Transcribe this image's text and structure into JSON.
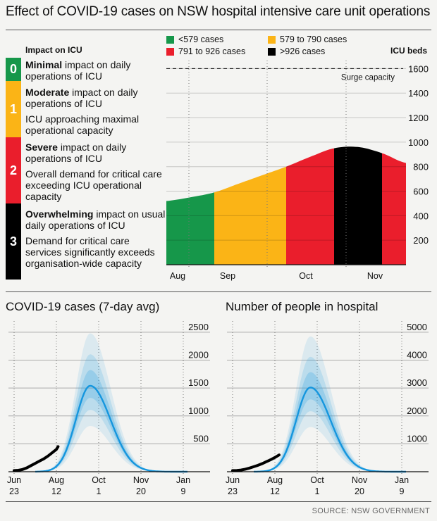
{
  "title": "Effect of COVID-19 cases on NSW hospital intensive care unit operations",
  "impact": {
    "heading": "Impact on ICU",
    "levels": [
      {
        "num": "0",
        "color": "#16974a",
        "bold": "Minimal",
        "rest": " impact on daily operations of ICU",
        "note": ""
      },
      {
        "num": "1",
        "color": "#fbb416",
        "bold": "Moderate",
        "rest": " impact on daily operations of ICU",
        "note": "ICU approaching maximal operational capacity"
      },
      {
        "num": "2",
        "color": "#ea1e2c",
        "bold": "Severe",
        "rest": " impact on daily operations of ICU",
        "note": "Overall demand for critical care exceeding ICU operational capacity"
      },
      {
        "num": "3",
        "color": "#000000",
        "bold": "Overwhelming",
        "rest": " impact on usual daily operations of ICU",
        "note": "Demand for critical care services significantly exceeds organisation-wide capacity"
      }
    ]
  },
  "legend": [
    {
      "label": "<579 cases",
      "color": "#16974a"
    },
    {
      "label": "579 to 790 cases",
      "color": "#fbb416"
    },
    {
      "label": "791 to 926 cases",
      "color": "#ea1e2c"
    },
    {
      "label": ">926 cases",
      "color": "#000000"
    }
  ],
  "icu_axis_label": "ICU beds",
  "surge_label": "Surge capacity",
  "sub_titles": {
    "cases": "COVID-19 cases (7-day avg)",
    "hospital": "Number of people in hospital"
  },
  "source": "SOURCE: NSW GOVERNMENT",
  "chart_data": [
    {
      "type": "area",
      "id": "icu",
      "ylabel": "ICU beds",
      "ylim": [
        0,
        1700
      ],
      "yticks": [
        200,
        400,
        600,
        800,
        1000,
        1200,
        1400,
        1600
      ],
      "xticks": [
        "Aug",
        "Sep",
        "Oct",
        "Nov"
      ],
      "surge_capacity": 1600,
      "x_months": [
        0,
        1,
        2,
        3,
        4,
        5,
        6,
        7,
        8,
        9,
        10
      ],
      "values": [
        520,
        550,
        590,
        660,
        730,
        800,
        880,
        950,
        960,
        910,
        830
      ],
      "bands": [
        {
          "from": 0,
          "to": 2,
          "color": "#16974a"
        },
        {
          "from": 2,
          "to": 5,
          "color": "#fbb416"
        },
        {
          "from": 5,
          "to": 7,
          "color": "#ea1e2c"
        },
        {
          "from": 7,
          "to": 9,
          "color": "#000000"
        },
        {
          "from": 9,
          "to": 10,
          "color": "#ea1e2c"
        }
      ]
    },
    {
      "type": "line",
      "id": "cases",
      "title": "COVID-19 cases (7-day avg)",
      "ylim": [
        0,
        2600
      ],
      "yticks": [
        500,
        1000,
        1500,
        2000,
        2500
      ],
      "xticks": [
        {
          "top": "Jun",
          "bottom": "23",
          "day": 0
        },
        {
          "top": "Aug",
          "bottom": "12",
          "day": 50
        },
        {
          "top": "Oct",
          "bottom": "1",
          "day": 100
        },
        {
          "top": "Nov",
          "bottom": "20",
          "day": 150
        },
        {
          "top": "Jan",
          "bottom": "9",
          "day": 200
        }
      ],
      "peak_day": 90,
      "projection_peak": 1540,
      "band_upper_peak": 2480,
      "band_lower_peak": 820,
      "actual": {
        "days": [
          0,
          5,
          10,
          15,
          20,
          25,
          30,
          35,
          40,
          45,
          50,
          52
        ],
        "values": [
          20,
          25,
          40,
          70,
          110,
          150,
          190,
          230,
          280,
          340,
          400,
          450
        ]
      }
    },
    {
      "type": "line",
      "id": "hospital",
      "title": "Number of people in hospital",
      "ylim": [
        0,
        5200
      ],
      "yticks": [
        1000,
        2000,
        3000,
        4000,
        5000
      ],
      "xticks": [
        {
          "top": "Jun",
          "bottom": "23",
          "day": 0
        },
        {
          "top": "Aug",
          "bottom": "12",
          "day": 50
        },
        {
          "top": "Oct",
          "bottom": "1",
          "day": 100
        },
        {
          "top": "Nov",
          "bottom": "20",
          "day": 150
        },
        {
          "top": "Jan",
          "bottom": "9",
          "day": 200
        }
      ],
      "peak_day": 92,
      "projection_peak": 3020,
      "band_upper_peak": 4850,
      "band_lower_peak": 1600,
      "actual": {
        "days": [
          0,
          5,
          10,
          15,
          20,
          25,
          30,
          35,
          40,
          45,
          50,
          55
        ],
        "values": [
          40,
          45,
          60,
          90,
          130,
          180,
          230,
          290,
          360,
          430,
          510,
          600
        ]
      }
    }
  ]
}
